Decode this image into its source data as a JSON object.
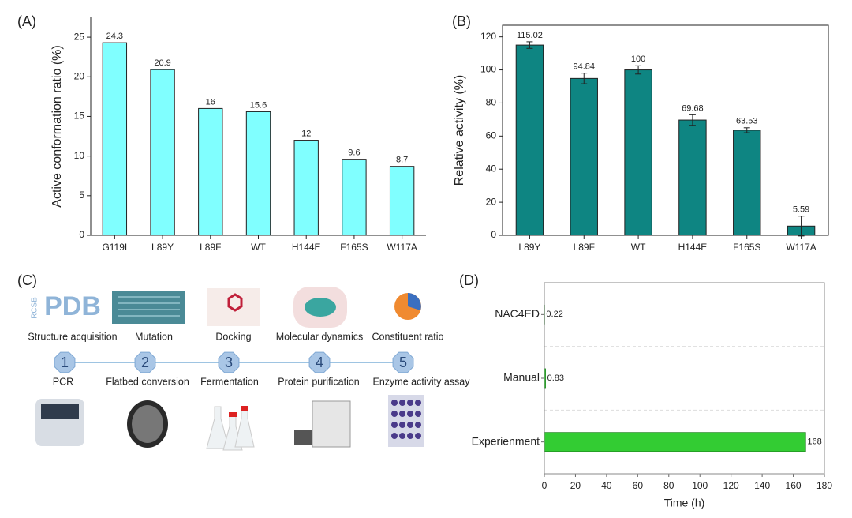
{
  "chart_data": [
    {
      "type": "bar",
      "panel_label": "(A)",
      "y_label": "Active conformation ratio (%)",
      "categories": [
        "G119I",
        "L89Y",
        "L89F",
        "WT",
        "H144E",
        "F165S",
        "W117A"
      ],
      "values": [
        24.3,
        20.9,
        16,
        15.6,
        12,
        9.6,
        8.7
      ],
      "color": "#80ffff",
      "ylim": [
        0,
        27.5
      ],
      "yticks": [
        0,
        5,
        10,
        15,
        20,
        25
      ]
    },
    {
      "type": "bar",
      "panel_label": "(B)",
      "y_label": "Relative activity (%)",
      "categories": [
        "L89Y",
        "L89F",
        "WT",
        "H144E",
        "F165S",
        "W117A"
      ],
      "values": [
        115.02,
        94.84,
        100,
        69.68,
        63.53,
        5.59
      ],
      "errors": [
        2,
        3.2,
        2.5,
        3.2,
        1.5,
        6
      ],
      "color": "#0e8582",
      "ylim": [
        0,
        127
      ],
      "yticks": [
        0,
        20,
        40,
        60,
        80,
        100,
        120
      ]
    },
    {
      "type": "hbar",
      "panel_label": "(D)",
      "x_label": "Time (h)",
      "categories": [
        "NAC4ED",
        "Manual",
        "Experienment"
      ],
      "values": [
        0.22,
        0.83,
        168
      ],
      "color": "#33cc33",
      "xlim": [
        0,
        180
      ],
      "xticks": [
        0,
        20,
        40,
        60,
        80,
        100,
        120,
        140,
        160,
        180
      ],
      "grid": true
    }
  ],
  "workflow": {
    "panel_label": "(C)",
    "logo": {
      "main": "PDB",
      "side": "RCSB"
    },
    "top_steps": [
      "Structure acquisition",
      "Mutation",
      "Docking",
      "Molecular dynamics",
      "Constituent ratio"
    ],
    "numbers": [
      "1",
      "2",
      "3",
      "4",
      "5"
    ],
    "bottom_steps": [
      "PCR",
      "Flatbed conversion",
      "Fermentation",
      "Protein purification",
      "Enzyme activity assay"
    ]
  }
}
